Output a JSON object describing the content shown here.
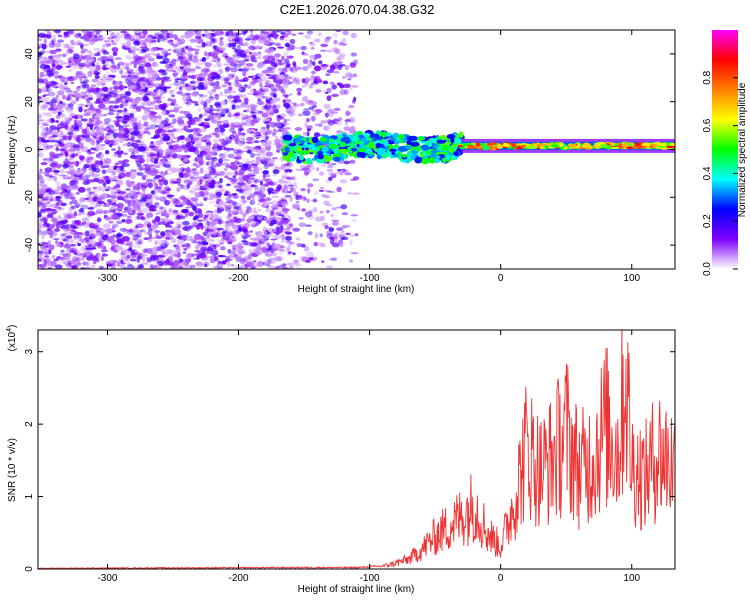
{
  "page": {
    "title": "C2E1.2026.070.04.38.G32"
  },
  "chart_data": [
    {
      "type": "heatmap",
      "title": "C2E1.2026.070.04.38.G32",
      "xlabel": "Height of straight line (km)",
      "ylabel": "Frequency (Hz)",
      "xlim": [
        -353,
        133
      ],
      "ylim": [
        -50,
        50
      ],
      "xticks": [
        -300,
        -200,
        -100,
        0,
        100
      ],
      "yticks": [
        -40,
        -20,
        0,
        20,
        40
      ],
      "colorbar": {
        "label": "Normalized spectral amplitude",
        "range": [
          0,
          1
        ],
        "ticks": [
          "0.0",
          "0.2",
          "0.4",
          "0.6",
          "0.8"
        ],
        "tick_values": [
          0.0,
          0.2,
          0.4,
          0.6,
          0.8
        ],
        "colors": [
          "#ffffff",
          "#8000ff",
          "#0000ff",
          "#00ffff",
          "#00ff00",
          "#ffff00",
          "#ff8000",
          "#ff0000",
          "#ff00ff"
        ]
      },
      "regions": [
        {
          "desc": "noise",
          "x": [
            -353,
            -160
          ],
          "y": [
            -50,
            50
          ],
          "amplitude": 0.1
        },
        {
          "desc": "sparse noise",
          "x": [
            -160,
            -110
          ],
          "y": [
            -50,
            50
          ],
          "amplitude": 0.05
        },
        {
          "desc": "signal band",
          "x": [
            -165,
            -30
          ],
          "y": [
            -4,
            6
          ],
          "amplitude": 0.4
        },
        {
          "desc": "signal line",
          "x": [
            -30,
            133
          ],
          "y": [
            0,
            3
          ],
          "amplitude": 0.8
        }
      ]
    },
    {
      "type": "line",
      "xlabel": "Height of straight line (km)",
      "ylabel": "SNR (10 * v/v)",
      "scale_label": "(x10^4)",
      "xlim": [
        -353,
        133
      ],
      "ylim": [
        0,
        3.3
      ],
      "xticks": [
        -300,
        -200,
        -100,
        0,
        100
      ],
      "yticks": [
        0,
        1,
        2,
        3
      ],
      "color": "#ee3333",
      "series": [
        {
          "values": [
            [
              -353,
              0.01
            ],
            [
              -150,
              0.02
            ],
            [
              -110,
              0.02
            ],
            [
              -90,
              0.04
            ],
            [
              -80,
              0.09
            ],
            [
              -70,
              0.15
            ],
            [
              -60,
              0.3
            ],
            [
              -50,
              0.5
            ],
            [
              -40,
              0.65
            ],
            [
              -30,
              0.8
            ],
            [
              -20,
              1.0
            ],
            [
              -10,
              0.55
            ],
            [
              0,
              0.35
            ],
            [
              10,
              1.0
            ],
            [
              20,
              1.9
            ],
            [
              30,
              1.5
            ],
            [
              40,
              1.7
            ],
            [
              50,
              2.1
            ],
            [
              60,
              1.5
            ],
            [
              70,
              1.7
            ],
            [
              80,
              2.2
            ],
            [
              90,
              1.8
            ],
            [
              95,
              3.1
            ],
            [
              100,
              1.6
            ],
            [
              110,
              1.4
            ],
            [
              120,
              1.8
            ],
            [
              133,
              1.6
            ]
          ]
        }
      ]
    }
  ]
}
